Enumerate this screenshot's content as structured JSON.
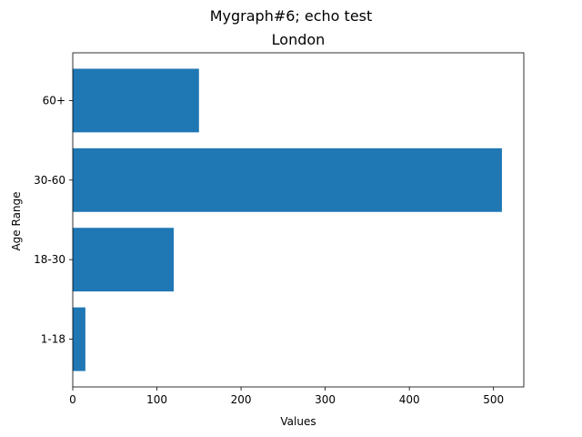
{
  "chart_data": {
    "type": "bar",
    "orientation": "horizontal",
    "suptitle": "Mygraph#6; echo test",
    "title": "London",
    "xlabel": "Values",
    "ylabel": "Age Range",
    "categories": [
      "1-18",
      "18-30",
      "30-60",
      "60+"
    ],
    "values": [
      15,
      120,
      510,
      150
    ],
    "xlim": [
      0,
      536
    ],
    "xticks": [
      0,
      100,
      200,
      300,
      400,
      500
    ],
    "grid": false,
    "bar_color": "#1f77b4"
  }
}
